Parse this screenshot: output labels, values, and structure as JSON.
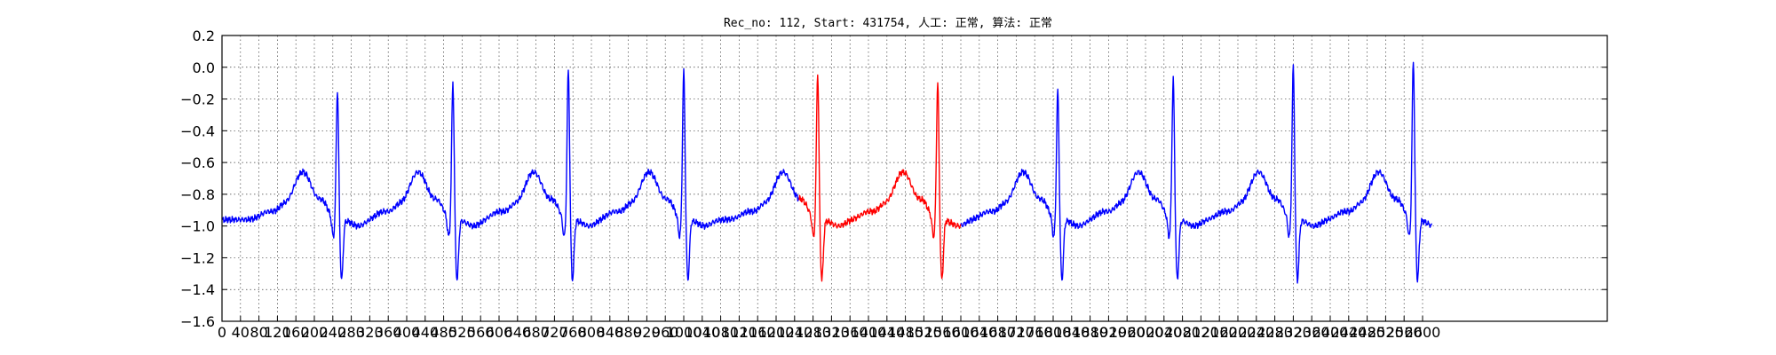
{
  "chart_data": {
    "type": "line",
    "title": "Rec_no: 112, Start: 431754, 人工: 正常, 算法: 正常",
    "xlabel": "",
    "ylabel": "",
    "xlim": [
      0,
      3000
    ],
    "ylim": [
      -1.6,
      0.2
    ],
    "grid": true,
    "x_ticks": [
      0,
      40,
      80,
      120,
      160,
      200,
      240,
      280,
      320,
      360,
      400,
      440,
      480,
      520,
      560,
      600,
      640,
      680,
      720,
      760,
      800,
      840,
      880,
      920,
      960,
      1000,
      1040,
      1080,
      1120,
      1160,
      1200,
      1240,
      1280,
      1320,
      1360,
      1400,
      1440,
      1480,
      1520,
      1560,
      1600,
      1640,
      1680,
      1720,
      1760,
      1800,
      1840,
      1880,
      1920,
      1960,
      2000,
      2040,
      2080,
      2120,
      2160,
      2200,
      2240,
      2280,
      2320,
      2360,
      2400,
      2440,
      2480,
      2520,
      2560,
      2600
    ],
    "x_tick_labels": [
      "0",
      "40",
      "80",
      "120",
      "160",
      "200",
      "240",
      "280",
      "320",
      "360",
      "400",
      "440",
      "480",
      "520",
      "560",
      "600",
      "640",
      "680",
      "720",
      "760",
      "800",
      "840",
      "880",
      "920",
      "960",
      "1000",
      "1040",
      "1080",
      "1120",
      "1160",
      "1200",
      "1240",
      "1280",
      "1320",
      "1360",
      "1400",
      "1440",
      "1480",
      "1520",
      "1560",
      "1600",
      "1640",
      "1680",
      "1720",
      "1760",
      "1800",
      "1840",
      "1880",
      "1920",
      "1960",
      "2000",
      "2040",
      "2080",
      "2120",
      "2160",
      "2200",
      "2240",
      "2280",
      "2320",
      "2360",
      "2400",
      "2440",
      "2480",
      "2520",
      "2560",
      "2600"
    ],
    "y_ticks": [
      0.2,
      0.0,
      -0.2,
      -0.4,
      -0.6,
      -0.8,
      -1.0,
      -1.2,
      -1.4,
      -1.6
    ],
    "y_tick_labels": [
      "0.2",
      "0.0",
      "−0.2",
      "−0.4",
      "−0.6",
      "−0.8",
      "−1.0",
      "−1.2",
      "−1.4",
      "−1.6"
    ],
    "series": [
      {
        "color": "#0000ff",
        "segments": [
          [
            0,
            1250
          ],
          [
            1600,
            2620
          ]
        ]
      },
      {
        "color": "#ff0000",
        "segments": [
          [
            1250,
            1600
          ]
        ]
      }
    ],
    "beats": [
      {
        "r": 250,
        "peak": -0.1
      },
      {
        "r": 500,
        "peak": -0.05
      },
      {
        "r": 750,
        "peak": 0.03
      },
      {
        "r": 1000,
        "peak": 0.02
      },
      {
        "r": 1290,
        "peak": 0.01
      },
      {
        "r": 1550,
        "peak": -0.05
      },
      {
        "r": 1810,
        "peak": -0.1
      },
      {
        "r": 2060,
        "peak": -0.03
      },
      {
        "r": 2320,
        "peak": 0.05
      },
      {
        "r": 2580,
        "peak": 0.09
      }
    ],
    "signal_end": 2620
  }
}
